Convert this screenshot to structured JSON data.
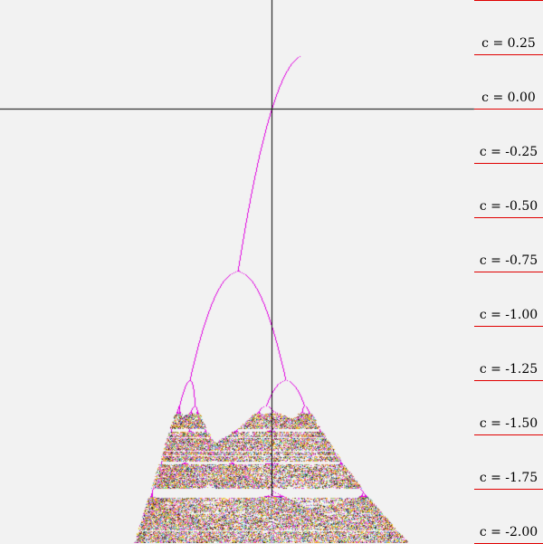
{
  "diagram": {
    "accent_color": "#e000e0",
    "axis_color": "#000000",
    "marker_color": "#e00000",
    "background_color": "#f2f2f2",
    "noise_palette": [
      "#e040e0",
      "#f080c0",
      "#ffb020",
      "#70d0a0",
      "#60a0e0",
      "#303030",
      "#ffffff",
      "#d0d030",
      "#c06040"
    ],
    "c_labels": [
      {
        "text": "c = 0.25",
        "c": 0.25
      },
      {
        "text": "c = 0.00",
        "c": 0.0
      },
      {
        "text": "c = -0.25",
        "c": -0.25
      },
      {
        "text": "c = -0.50",
        "c": -0.5
      },
      {
        "text": "c = -0.75",
        "c": -0.75
      },
      {
        "text": "c = -1.00",
        "c": -1.0
      },
      {
        "text": "c = -1.25",
        "c": -1.25
      },
      {
        "text": "c = -1.50",
        "c": -1.5
      },
      {
        "text": "c = -1.75",
        "c": -1.75
      },
      {
        "text": "c = -2.00",
        "c": -2.0
      }
    ],
    "c_range": [
      -2.0,
      0.25
    ],
    "x_range": [
      -2.0,
      2.0
    ]
  }
}
